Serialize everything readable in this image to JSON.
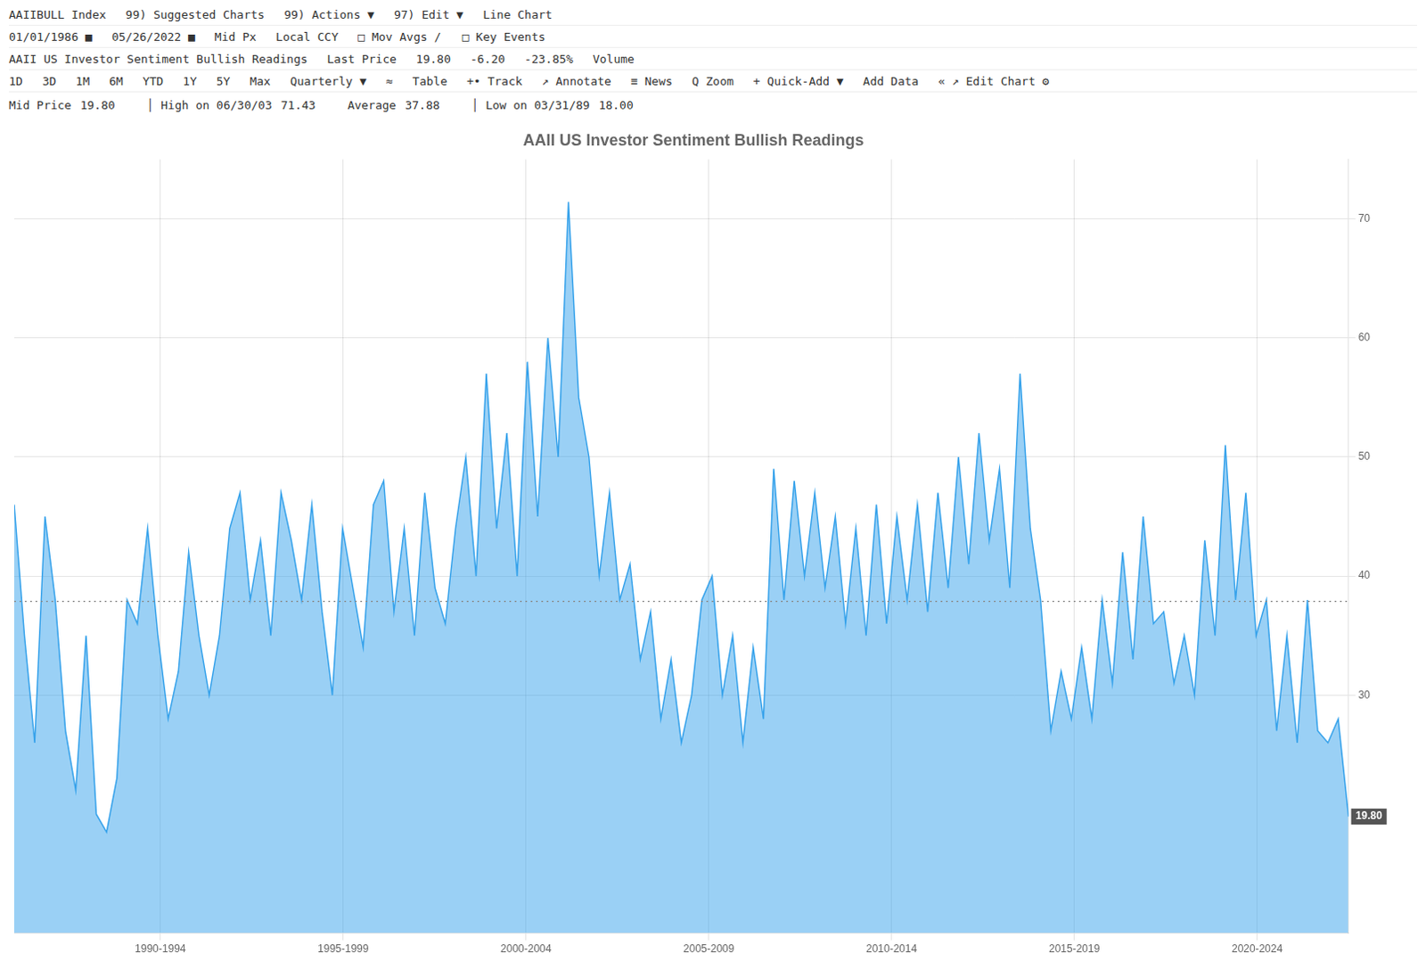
{
  "chart_data": {
    "type": "line",
    "title": "AAII US Investor Sentiment Bullish Readings",
    "annotations": [
      [
        "AAIIBULL Index",
        "99) Suggested Charts",
        "99) Actions ▼",
        "97) Edit ▼",
        "Line Chart"
      ],
      [
        "01/01/1986 ■",
        "05/26/2022 ■",
        "Mid Px",
        "Local CCY",
        "□ Mov Avgs /   □ Key Events"
      ],
      [
        "AAII US Investor Sentiment Bullish Readings",
        "Last Price",
        "19.80",
        "-6.20",
        "-23.85%",
        "Volume"
      ],
      [
        "1D",
        "3D",
        "1M",
        "6M",
        "YTD",
        "1Y",
        "5Y",
        "Max",
        "Quarterly ▼",
        "≈",
        "Table",
        "+• Track",
        "↗ Annotate",
        "≡ News",
        "Q Zoom",
        "+ Quick-Add ▼",
        "Add Data",
        "« ↗ Edit Chart ⚙"
      ]
    ],
    "stats": [
      {
        "name": "Mid Price",
        "value": 19.8,
        "label": "19.80"
      },
      {
        "name": "│ High on 06/30/03",
        "value": 71.43
      },
      {
        "name": "Average",
        "value": 37.88
      },
      {
        "name": "│ Low on 03/31/89",
        "value": 18,
        "label": "18.00"
      }
    ],
    "average": 37.88,
    "last_price": {
      "value": 19.8,
      "label": "19.80"
    },
    "x": [
      1986,
      1986.2808,
      1986.5615,
      1986.8423,
      1987.1231,
      1987.4038,
      1987.6846,
      1987.9654,
      1988.2462,
      1988.5269,
      1988.8077,
      1989.0885,
      1989.3692,
      1989.65,
      1989.9308,
      1990.2115,
      1990.4923,
      1990.7731,
      1991.0538,
      1991.3346,
      1991.6154,
      1991.8962,
      1992.1769,
      1992.4577,
      1992.7385,
      1993.0192,
      1993.3,
      1993.5808,
      1993.8615,
      1994.1423,
      1994.4231,
      1994.7038,
      1994.9846,
      1995.2654,
      1995.5462,
      1995.8269,
      1996.1077,
      1996.3885,
      1996.6692,
      1996.95,
      1997.2308,
      1997.5115,
      1997.7923,
      1998.0731,
      1998.3538,
      1998.6346,
      1998.9154,
      1999.1962,
      1999.4769,
      1999.7577,
      2000.0385,
      2000.3192,
      2000.6,
      2000.8808,
      2001.1615,
      2001.4423,
      2001.7231,
      2002.0038,
      2002.2846,
      2002.5654,
      2002.8462,
      2003.1269,
      2003.4077,
      2003.6885,
      2003.9692,
      2004.25,
      2004.5308,
      2004.8115,
      2005.0923,
      2005.3731,
      2005.6538,
      2005.9346,
      2006.2154,
      2006.4962,
      2006.7769,
      2007.0577,
      2007.3385,
      2007.6192,
      2007.9,
      2008.1808,
      2008.4615,
      2008.7423,
      2009.0231,
      2009.3038,
      2009.5846,
      2009.8654,
      2010.1462,
      2010.4269,
      2010.7077,
      2010.9885,
      2011.2692,
      2011.55,
      2011.8308,
      2012.1115,
      2012.3923,
      2012.6731,
      2012.9538,
      2013.2346,
      2013.5154,
      2013.7962,
      2014.0769,
      2014.3577,
      2014.6385,
      2014.9192,
      2015.2,
      2015.4808,
      2015.7615,
      2016.0423,
      2016.3231,
      2016.6038,
      2016.8846,
      2017.1654,
      2017.4462,
      2017.7269,
      2018.0077,
      2018.2885,
      2018.5692,
      2018.85,
      2019.1308,
      2019.4115,
      2019.6923,
      2019.9731,
      2020.2538,
      2020.5346,
      2020.8154,
      2021.0962,
      2021.3769,
      2021.6577,
      2021.9385,
      2022.2192,
      2022.5
    ],
    "values": [
      46.0,
      35.0,
      26.0,
      45.0,
      38.0,
      27.0,
      22.0,
      35.0,
      20.0,
      18.5,
      23.0,
      38.0,
      36.0,
      44.0,
      35.0,
      28.0,
      32.0,
      42.0,
      35.0,
      30.0,
      35.0,
      44.0,
      47.0,
      38.0,
      43.0,
      35.0,
      47.0,
      43.0,
      38.0,
      46.0,
      37.0,
      30.0,
      44.0,
      39.0,
      34.0,
      46.0,
      48.0,
      37.0,
      44.0,
      35.0,
      47.0,
      39.0,
      36.0,
      44.0,
      50.0,
      40.0,
      57.0,
      44.0,
      52.0,
      40.0,
      58.0,
      45.0,
      60.0,
      50.0,
      71.43,
      55.0,
      50.0,
      40.0,
      47.0,
      38.0,
      41.0,
      33.0,
      37.0,
      28.0,
      33.0,
      26.0,
      30.0,
      38.0,
      40.0,
      30.0,
      35.0,
      26.0,
      34.0,
      28.0,
      49.0,
      38.0,
      48.0,
      40.0,
      47.0,
      39.0,
      45.0,
      36.0,
      44.0,
      35.0,
      46.0,
      36.0,
      45.0,
      38.0,
      46.0,
      37.0,
      47.0,
      39.0,
      50.0,
      41.0,
      52.0,
      43.0,
      49.0,
      39.0,
      57.0,
      44.0,
      38.0,
      27.0,
      32.0,
      28.0,
      34.0,
      28.0,
      38.0,
      31.0,
      42.0,
      33.0,
      45.0,
      36.0,
      37.0,
      31.0,
      35.0,
      30.0,
      43.0,
      35.0,
      51.0,
      38.0,
      47.0,
      35.0,
      38.0,
      27.0,
      35.0,
      26.0,
      38.0,
      27.0,
      26.0,
      28.0,
      19.8
    ],
    "xlim": [
      1986.0,
      2022.5
    ],
    "xticks": [
      {
        "value": 1990,
        "label": "1990-1994"
      },
      {
        "value": 1995,
        "label": "1995-1999"
      },
      {
        "value": 2000,
        "label": "2000-2004"
      },
      {
        "value": 2005,
        "label": "2005-2009"
      },
      {
        "value": 2010,
        "label": "2010-2014"
      },
      {
        "value": 2015,
        "label": "2015-2019"
      },
      {
        "value": 2020,
        "label": "2020-2024"
      }
    ],
    "ylim": [
      10,
      75
    ],
    "yticks": [
      30,
      40,
      50,
      60,
      70
    ],
    "grid": true
  }
}
